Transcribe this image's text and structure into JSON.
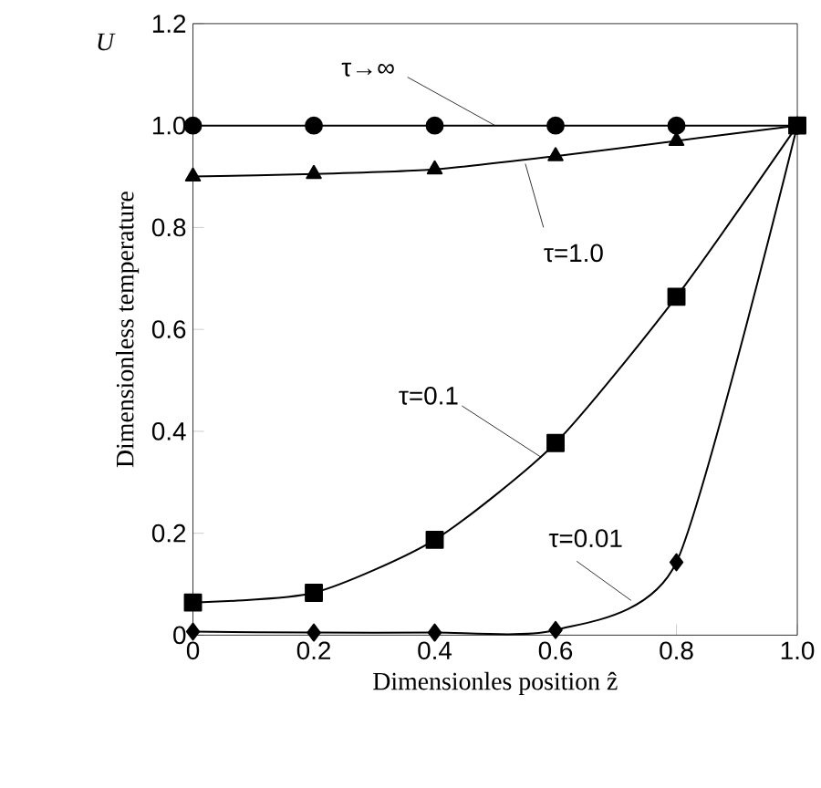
{
  "chart_data": {
    "type": "line",
    "x": [
      0,
      0.2,
      0.4,
      0.6,
      0.8,
      1.0
    ],
    "series": [
      {
        "name": "τ→∞",
        "color": "#000000",
        "marker": "circle",
        "values": [
          1.0,
          1.0,
          1.0,
          1.0,
          1.0,
          1.0
        ]
      },
      {
        "name": "τ=1.0",
        "color": "#000000",
        "marker": "triangle",
        "values": [
          0.9,
          0.905,
          0.914,
          0.94,
          0.97,
          1.0
        ]
      },
      {
        "name": "τ=0.1",
        "color": "#000000",
        "marker": "square",
        "values": [
          0.064,
          0.083,
          0.187,
          0.377,
          0.664,
          1.0
        ]
      },
      {
        "name": "τ=0.01",
        "color": "#000000",
        "marker": "diamond",
        "values": [
          0.007,
          0.005,
          0.005,
          0.01,
          0.143,
          1.0
        ]
      }
    ],
    "xlabel": "Dimensionles position  ẑ",
    "ylabel": "Dimensionless temperature",
    "annotations": [
      "U"
    ],
    "xlim": [
      0,
      1.0
    ],
    "ylim": [
      0,
      1.2
    ],
    "xticks": [
      0,
      0.2,
      0.4,
      0.6,
      0.8,
      {
        "value": 1.0,
        "label": "1.0"
      }
    ],
    "yticks": [
      0,
      0.2,
      0.4,
      0.6,
      0.8,
      {
        "value": 1.0,
        "label": "1.0"
      },
      1.2
    ],
    "grid": false,
    "line_style": "solid"
  }
}
